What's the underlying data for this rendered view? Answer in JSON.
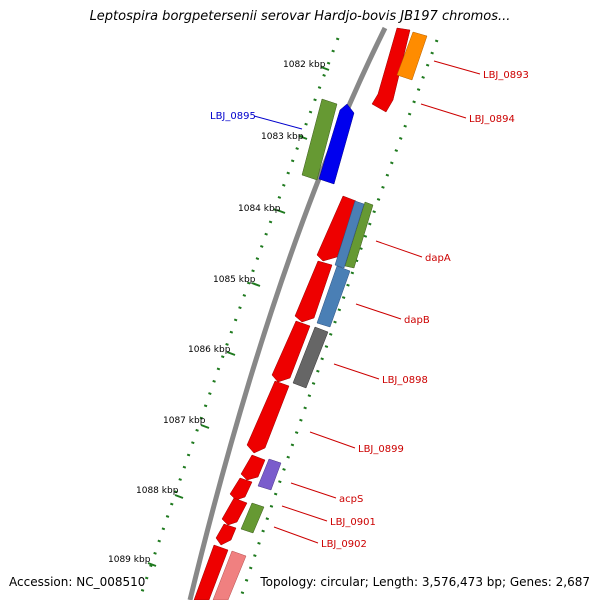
{
  "title": "Leptospira borgpetersenii serovar Hardjo-bovis JB197 chromos...",
  "accession": "Accession: NC_008510",
  "topology": "Topology: circular; Length: 3,576,473 bp; Genes: 2,687",
  "colors": {
    "backbone": "#888888",
    "ticks": "#1f7a1f",
    "label_red": "#cc0000",
    "label_blue": "#0000cc"
  },
  "ticks": [
    {
      "label": "1082 kbp",
      "kbp": 1082
    },
    {
      "label": "1083 kbp",
      "kbp": 1083
    },
    {
      "label": "1084 kbp",
      "kbp": 1084
    },
    {
      "label": "1085 kbp",
      "kbp": 1085
    },
    {
      "label": "1086 kbp",
      "kbp": 1086
    },
    {
      "label": "1087 kbp",
      "kbp": 1087
    },
    {
      "label": "1088 kbp",
      "kbp": 1088
    },
    {
      "label": "1089 kbp",
      "kbp": 1089
    }
  ],
  "labels": [
    {
      "id": "LBJ_0893",
      "text": "LBJ_0893",
      "color": "#cc0000"
    },
    {
      "id": "LBJ_0894",
      "text": "LBJ_0894",
      "color": "#cc0000"
    },
    {
      "id": "LBJ_0895",
      "text": "LBJ_0895",
      "color": "#0000cc"
    },
    {
      "id": "dapA",
      "text": "dapA",
      "color": "#cc0000"
    },
    {
      "id": "dapB",
      "text": "dapB",
      "color": "#cc0000"
    },
    {
      "id": "LBJ_0898",
      "text": "LBJ_0898",
      "color": "#cc0000"
    },
    {
      "id": "LBJ_0899",
      "text": "LBJ_0899",
      "color": "#cc0000"
    },
    {
      "id": "acpS",
      "text": "acpS",
      "color": "#cc0000"
    },
    {
      "id": "LBJ_0901",
      "text": "LBJ_0901",
      "color": "#cc0000"
    },
    {
      "id": "LBJ_0902",
      "text": "LBJ_0902",
      "color": "#cc0000"
    }
  ]
}
